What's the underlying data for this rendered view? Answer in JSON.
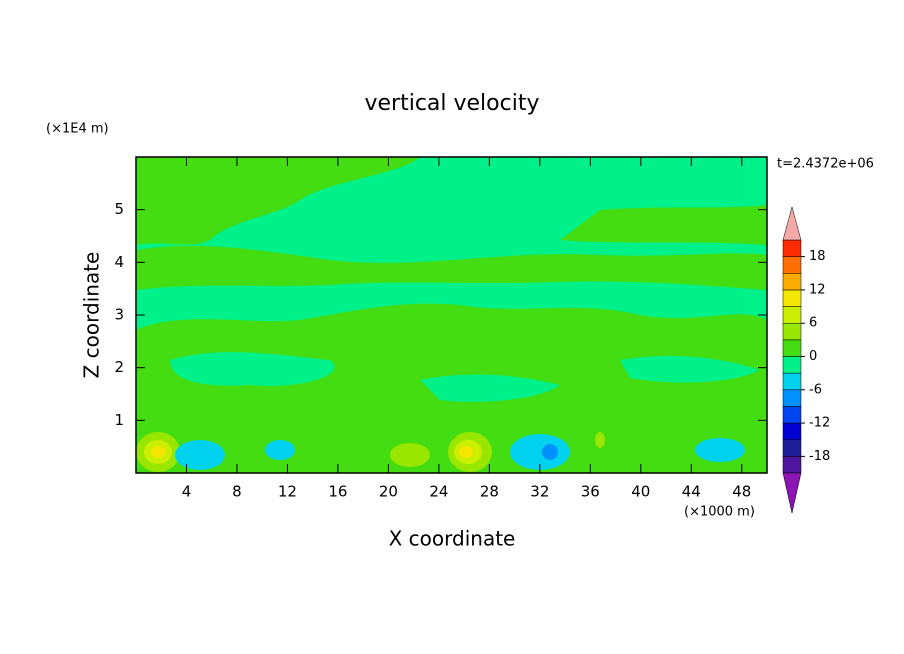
{
  "chart_data": {
    "type": "contour",
    "title": "vertical velocity",
    "x_label": "X coordinate",
    "y_label": "Z coordinate",
    "x_unit": "(×1000 m)",
    "y_unit": "(×1E4 m)",
    "time_label": "t=2.4372e+06",
    "xlim": [
      0,
      50
    ],
    "xticks": [
      4,
      8,
      12,
      16,
      20,
      24,
      28,
      32,
      36,
      40,
      44,
      48
    ],
    "ylim": [
      0,
      6
    ],
    "yticks": [
      1,
      2,
      3,
      4,
      5
    ],
    "colorbar": {
      "levels": [
        -21,
        -18,
        -15,
        -12,
        -9,
        -6,
        -3,
        0,
        3,
        6,
        9,
        12,
        15,
        18,
        21
      ],
      "colors": [
        "#5014a0",
        "#1e1e9a",
        "#0000d2",
        "#0046f0",
        "#0090ff",
        "#00d2f0",
        "#00f08a",
        "#44dd11",
        "#99e600",
        "#ccee00",
        "#f5e600",
        "#ffaa00",
        "#ff7000",
        "#ff2a00"
      ],
      "extend_low_color": "#8c14b4",
      "extend_high_color": "#f4a8a8",
      "ticks": [
        -18,
        -12,
        -6,
        0,
        6,
        12,
        18
      ]
    }
  }
}
